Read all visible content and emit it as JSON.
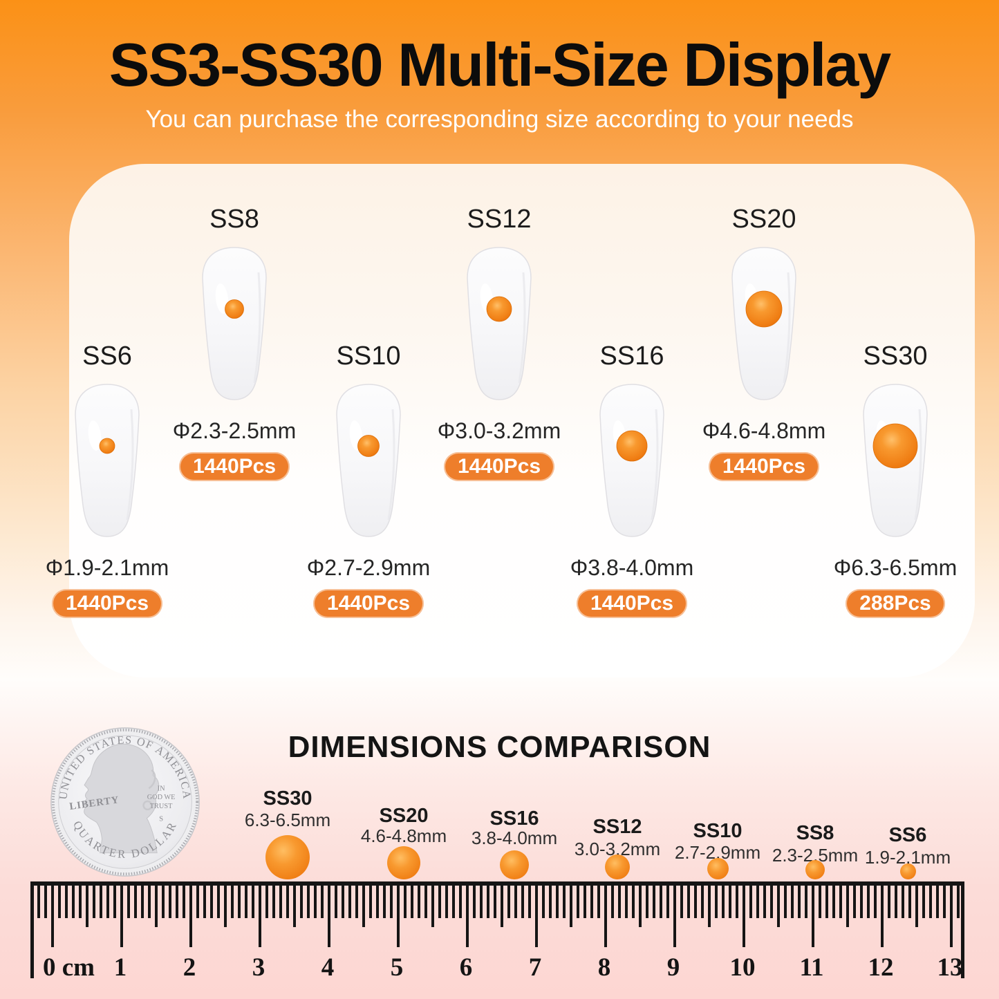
{
  "header": {
    "title": "SS3-SS30 Multi-Size Display",
    "subtitle": "You can purchase the corresponding size according to your needs"
  },
  "sizes": [
    {
      "id": "SS8",
      "label": "SS8",
      "diameter": "Φ2.3-2.5mm",
      "qty": "1440Pcs"
    },
    {
      "id": "SS12",
      "label": "SS12",
      "diameter": "Φ3.0-3.2mm",
      "qty": "1440Pcs"
    },
    {
      "id": "SS20",
      "label": "SS20",
      "diameter": "Φ4.6-4.8mm",
      "qty": "1440Pcs"
    },
    {
      "id": "SS6",
      "label": "SS6",
      "diameter": "Φ1.9-2.1mm",
      "qty": "1440Pcs"
    },
    {
      "id": "SS10",
      "label": "SS10",
      "diameter": "Φ2.7-2.9mm",
      "qty": "1440Pcs"
    },
    {
      "id": "SS16",
      "label": "SS16",
      "diameter": "Φ3.8-4.0mm",
      "qty": "1440Pcs"
    },
    {
      "id": "SS30",
      "label": "SS30",
      "diameter": "Φ6.3-6.5mm",
      "qty": "288Pcs"
    }
  ],
  "comparison": {
    "title": "DIMENSIONS COMPARISON",
    "coin": {
      "top_text": "UNITED STATES OF AMERICA",
      "left_text": "LIBERTY",
      "right_line1": "IN",
      "right_line2": "GOD WE",
      "right_line3": "TRUST",
      "mint_mark": "S",
      "bottom_text": "QUARTER DOLLAR"
    },
    "items": [
      {
        "label": "SS30",
        "size": "6.3-6.5mm"
      },
      {
        "label": "SS20",
        "size": "4.6-4.8mm"
      },
      {
        "label": "SS16",
        "size": "3.8-4.0mm"
      },
      {
        "label": "SS12",
        "size": "3.0-3.2mm"
      },
      {
        "label": "SS10",
        "size": "2.7-2.9mm"
      },
      {
        "label": "SS8",
        "size": "2.3-2.5mm"
      },
      {
        "label": "SS6",
        "size": "1.9-2.1mm"
      }
    ],
    "ruler": {
      "unit": "cm",
      "numbers": [
        0,
        1,
        2,
        3,
        4,
        5,
        6,
        7,
        8,
        9,
        10,
        11,
        12,
        13
      ]
    }
  },
  "colors": {
    "accent_badge": "#EE7E2B",
    "gem_orange": "#F07F15",
    "top_background": "#FB9116",
    "bottom_background": "#FDD6D2"
  }
}
